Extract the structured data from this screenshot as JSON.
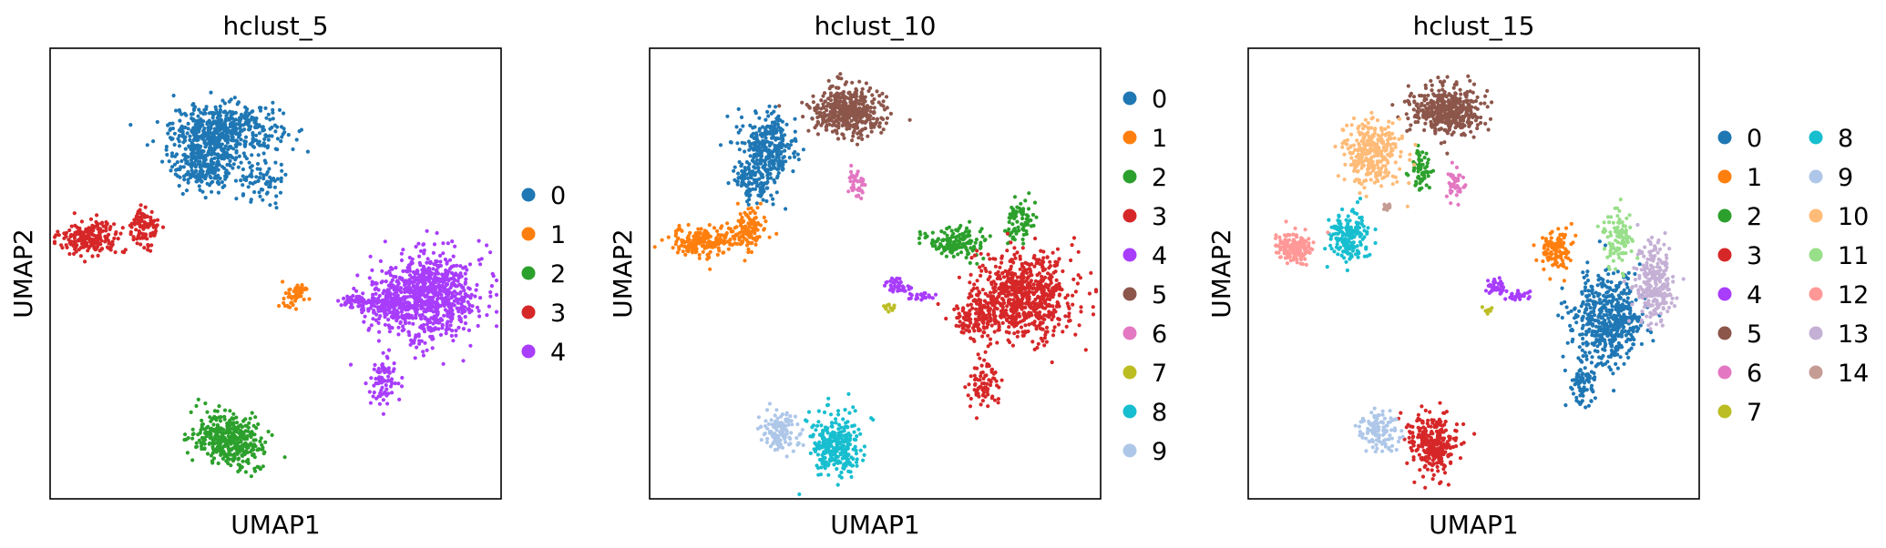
{
  "chart_data": [
    {
      "type": "scatter",
      "title": "hclust_5",
      "xlabel": "UMAP1",
      "ylabel": "UMAP2",
      "xlim": [
        0,
        100
      ],
      "ylim": [
        0,
        100
      ],
      "grid": false,
      "legend_position": "right",
      "legend_columns": 1,
      "legend": [
        "0",
        "1",
        "2",
        "3",
        "4"
      ],
      "clusters": [
        {
          "label": "0",
          "color": "#1f77b4",
          "blobs": [
            [
              39,
              82,
              11,
              5,
              450
            ],
            [
              34,
              75,
              7,
              6,
              300
            ],
            [
              47,
              70,
              5,
              5,
              70
            ]
          ]
        },
        {
          "label": "1",
          "color": "#ff7f0e",
          "blobs": [
            [
              55,
              46,
              2,
              1.5,
              40
            ],
            [
              53,
              43,
              1.5,
              2,
              15
            ]
          ]
        },
        {
          "label": "2",
          "color": "#2ca02c",
          "blobs": [
            [
              39,
              14,
              7,
              5,
              300
            ],
            [
              43,
              10,
              5,
              4,
              80
            ]
          ]
        },
        {
          "label": "3",
          "color": "#d62728",
          "blobs": [
            [
              9,
              58,
              6,
              3,
              200
            ],
            [
              21,
              60,
              3,
              4,
              100
            ]
          ]
        },
        {
          "label": "4",
          "color": "#a83dfc",
          "blobs": [
            [
              84,
              45,
              10,
              9,
              800
            ],
            [
              74,
              43,
              6,
              4,
              150
            ],
            [
              67,
              44,
              4,
              1,
              40
            ],
            [
              74,
              26,
              3,
              5,
              80
            ]
          ]
        }
      ]
    },
    {
      "type": "scatter",
      "title": "hclust_10",
      "xlabel": "UMAP1",
      "ylabel": "UMAP2",
      "xlim": [
        0,
        100
      ],
      "ylim": [
        0,
        100
      ],
      "grid": false,
      "legend_position": "right",
      "legend_columns": 1,
      "legend": [
        "0",
        "1",
        "2",
        "3",
        "4",
        "5",
        "6",
        "7",
        "8",
        "9"
      ],
      "clusters": [
        {
          "label": "0",
          "color": "#1f77b4",
          "blobs": [
            [
              26,
              78,
              6,
              7,
              300
            ],
            [
              23,
              70,
              4,
              4,
              100
            ]
          ]
        },
        {
          "label": "1",
          "color": "#ff7f0e",
          "blobs": [
            [
              12,
              57,
              7,
              3,
              200
            ],
            [
              22,
              60,
              3,
              4,
              100
            ]
          ]
        },
        {
          "label": "2",
          "color": "#2ca02c",
          "blobs": [
            [
              68,
              57,
              6,
              3,
              150
            ],
            [
              82,
              62,
              3,
              4,
              80
            ]
          ]
        },
        {
          "label": "3",
          "color": "#d62728",
          "blobs": [
            [
              83,
              45,
              10,
              9,
              700
            ],
            [
              73,
              40,
              5,
              5,
              150
            ],
            [
              74,
              26,
              3,
              5,
              80
            ]
          ]
        },
        {
          "label": "4",
          "color": "#a83dfc",
          "blobs": [
            [
              55,
              47,
              2,
              1.5,
              40
            ],
            [
              60,
              45,
              3,
              1,
              25
            ]
          ]
        },
        {
          "label": "5",
          "color": "#8c564b",
          "blobs": [
            [
              44,
              86,
              7,
              5,
              450
            ]
          ]
        },
        {
          "label": "6",
          "color": "#e377c2",
          "blobs": [
            [
              46,
              70,
              2,
              3,
              40
            ]
          ]
        },
        {
          "label": "7",
          "color": "#bcbd22",
          "blobs": [
            [
              53,
              42,
              1,
              1,
              10
            ]
          ]
        },
        {
          "label": "8",
          "color": "#17becf",
          "blobs": [
            [
              41,
              12,
              5,
              6,
              300
            ]
          ]
        },
        {
          "label": "9",
          "color": "#aec7e8",
          "blobs": [
            [
              29,
              15,
              4,
              4,
              120
            ]
          ]
        }
      ]
    },
    {
      "type": "scatter",
      "title": "hclust_15",
      "xlabel": "UMAP1",
      "ylabel": "UMAP2",
      "xlim": [
        0,
        100
      ],
      "ylim": [
        0,
        100
      ],
      "grid": false,
      "legend_position": "right",
      "legend_columns": 2,
      "legend": [
        "0",
        "1",
        "2",
        "3",
        "4",
        "5",
        "6",
        "7",
        "8",
        "9",
        "10",
        "11",
        "12",
        "13",
        "14"
      ],
      "clusters": [
        {
          "label": "0",
          "color": "#1f77b4",
          "blobs": [
            [
              80,
              40,
              7,
              9,
              500
            ],
            [
              74,
              26,
              3,
              5,
              80
            ]
          ]
        },
        {
          "label": "1",
          "color": "#ff7f0e",
          "blobs": [
            [
              68,
              55,
              3,
              4,
              120
            ]
          ]
        },
        {
          "label": "2",
          "color": "#2ca02c",
          "blobs": [
            [
              38,
              73,
              2,
              4,
              60
            ]
          ]
        },
        {
          "label": "3",
          "color": "#d62728",
          "blobs": [
            [
              41,
              12,
              5,
              6,
              300
            ]
          ]
        },
        {
          "label": "4",
          "color": "#a83dfc",
          "blobs": [
            [
              55,
              47,
              2,
              1.5,
              40
            ],
            [
              60,
              45,
              3,
              1,
              25
            ]
          ]
        },
        {
          "label": "5",
          "color": "#8c564b",
          "blobs": [
            [
              44,
              86,
              7,
              5,
              450
            ]
          ]
        },
        {
          "label": "6",
          "color": "#e377c2",
          "blobs": [
            [
              46,
              70,
              2,
              3,
              40
            ]
          ]
        },
        {
          "label": "7",
          "color": "#bcbd22",
          "blobs": [
            [
              53,
              42,
              1,
              1,
              10
            ]
          ]
        },
        {
          "label": "8",
          "color": "#17becf",
          "blobs": [
            [
              22,
              58,
              4,
              5,
              180
            ]
          ]
        },
        {
          "label": "9",
          "color": "#aec7e8",
          "blobs": [
            [
              29,
              15,
              4,
              4,
              120
            ]
          ]
        },
        {
          "label": "10",
          "color": "#ffbb78",
          "blobs": [
            [
              27,
              77,
              6,
              7,
              300
            ]
          ]
        },
        {
          "label": "11",
          "color": "#98df8a",
          "blobs": [
            [
              82,
              58,
              3,
              5,
              100
            ]
          ]
        },
        {
          "label": "12",
          "color": "#ff9896",
          "blobs": [
            [
              10,
              56,
              4,
              3,
              150
            ]
          ]
        },
        {
          "label": "13",
          "color": "#c5b0d5",
          "blobs": [
            [
              90,
              48,
              4,
              8,
              250
            ]
          ]
        },
        {
          "label": "14",
          "color": "#c49c94",
          "blobs": [
            [
              31,
              65,
              1,
              1,
              10
            ]
          ]
        }
      ]
    }
  ]
}
